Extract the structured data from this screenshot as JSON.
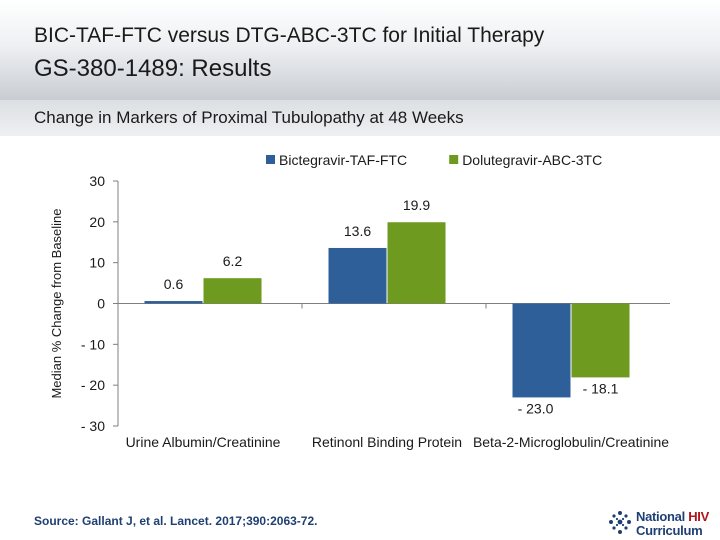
{
  "header": {
    "title": "BIC-TAF-FTC versus DTG-ABC-3TC for Initial Therapy",
    "subtitle": "GS-380-1489: Results"
  },
  "section": {
    "title": "Change in Markers of Proximal Tubulopathy at 48 Weeks"
  },
  "chart_data": {
    "type": "bar",
    "title": "",
    "ylabel": "Median % Change from Baseline",
    "xlabel": "",
    "ylim": [
      -30,
      30
    ],
    "yticks": [
      30,
      20,
      10,
      0,
      -10,
      -20,
      -30
    ],
    "ytick_labels": [
      "30",
      "20",
      "10",
      "0",
      "- 10",
      "- 20",
      "- 30"
    ],
    "categories": [
      "Urine Albumin/Creatinine",
      "Retinonl Binding Protein",
      "Beta-2-Microglobulin/Creatinine"
    ],
    "series": [
      {
        "name": "Bictegravir-TAF-FTC",
        "color": "#2e5f98",
        "values": [
          0.6,
          13.6,
          -23.0
        ],
        "labels": [
          "0.6",
          "13.6",
          "- 23.0"
        ]
      },
      {
        "name": "Dolutegravir-ABC-3TC",
        "color": "#6d9a1f",
        "values": [
          6.2,
          19.9,
          -18.1
        ],
        "labels": [
          "6.2",
          "19.9",
          "- 18.1"
        ]
      }
    ],
    "legend_position": "top",
    "grid": false
  },
  "footer": {
    "source": "Source: Gallant J, et al. Lancet. 2017;390:2063-72.",
    "logo_line1": "National",
    "logo_line1_accent": "HIV",
    "logo_line2": "Curriculum"
  }
}
